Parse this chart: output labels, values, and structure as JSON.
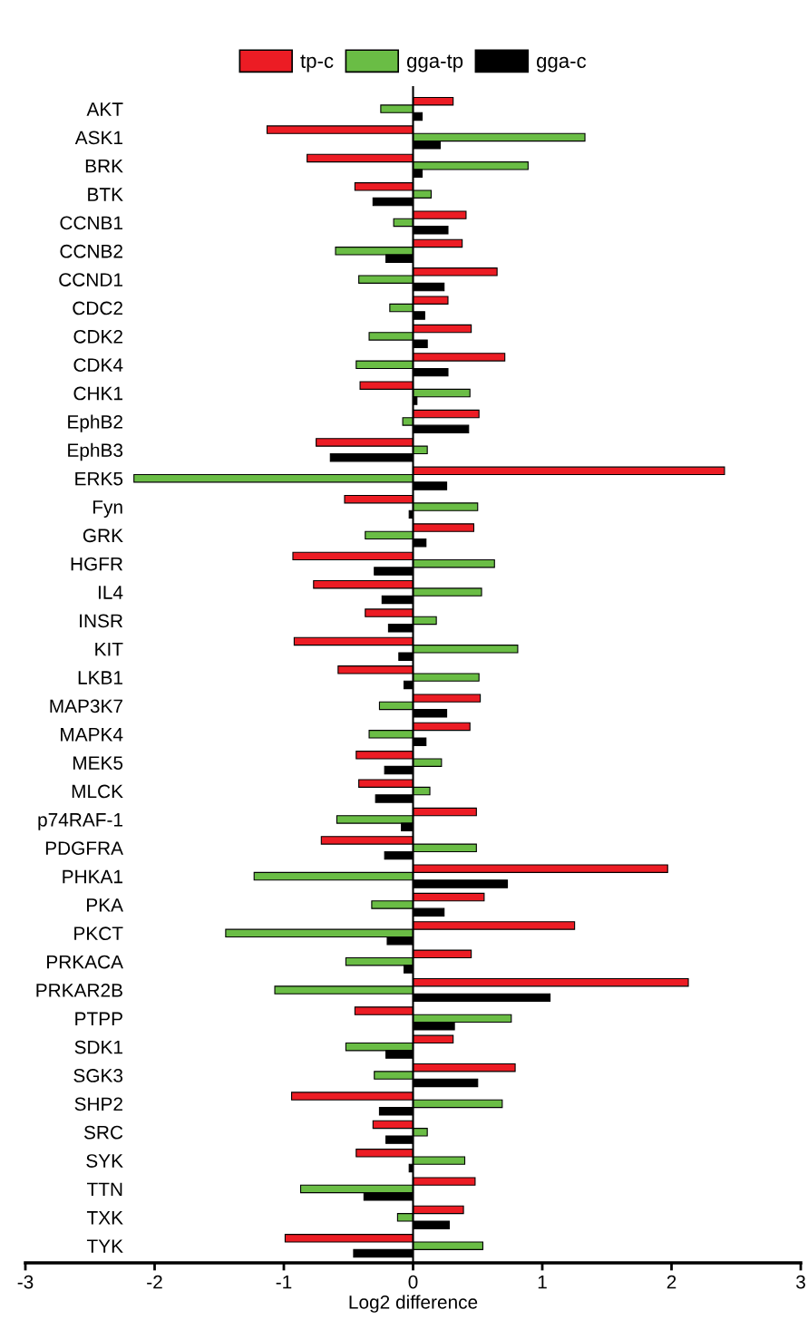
{
  "chart_data": {
    "type": "bar",
    "orientation": "horizontal",
    "xlabel": "Log2 difference",
    "categories": [
      "AKT",
      "ASK1",
      "BRK",
      "BTK",
      "CCNB1",
      "CCNB2",
      "CCND1",
      "CDC2",
      "CDK2",
      "CDK4",
      "CHK1",
      "EphB2",
      "EphB3",
      "ERK5",
      "Fyn",
      "GRK",
      "HGFR",
      "IL4",
      "INSR",
      "KIT",
      "LKB1",
      "MAP3K7",
      "MAPK4",
      "MEK5",
      "MLCK",
      "p74RAF-1",
      "PDGFRA",
      "PHKA1",
      "PKA",
      "PKCT",
      "PRKACA",
      "PRKAR2B",
      "PTPP",
      "SDK1",
      "SGK3",
      "SHP2",
      "SRC",
      "SYK",
      "TTN",
      "TXK",
      "TYK"
    ],
    "series": [
      {
        "name": "tp-c",
        "color": "#ec1c24",
        "values": [
          0.31,
          -1.13,
          -0.82,
          -0.45,
          0.41,
          0.38,
          0.65,
          0.27,
          0.45,
          0.71,
          -0.41,
          0.51,
          -0.75,
          2.41,
          -0.53,
          0.47,
          -0.93,
          -0.77,
          -0.37,
          -0.92,
          -0.58,
          0.52,
          0.44,
          -0.44,
          -0.42,
          0.49,
          -0.71,
          1.97,
          0.55,
          1.25,
          0.45,
          2.13,
          -0.45,
          0.31,
          0.79,
          -0.94,
          -0.31,
          -0.44,
          0.48,
          0.39,
          -0.99
        ]
      },
      {
        "name": "gga-tp",
        "color": "#6abd45",
        "values": [
          -0.25,
          1.33,
          0.89,
          0.14,
          -0.15,
          -0.6,
          -0.42,
          -0.18,
          -0.34,
          -0.44,
          0.44,
          -0.08,
          0.11,
          -2.16,
          0.5,
          -0.37,
          0.63,
          0.53,
          0.18,
          0.81,
          0.51,
          -0.26,
          -0.34,
          0.22,
          0.13,
          -0.59,
          0.49,
          -1.23,
          -0.32,
          -1.45,
          -0.52,
          -1.07,
          0.76,
          -0.52,
          -0.3,
          0.69,
          0.11,
          0.4,
          -0.87,
          -0.12,
          0.54
        ]
      },
      {
        "name": "gga-c",
        "color": "#000000",
        "values": [
          0.07,
          0.21,
          0.07,
          -0.31,
          0.27,
          -0.21,
          0.24,
          0.09,
          0.11,
          0.27,
          0.03,
          0.43,
          -0.64,
          0.26,
          -0.03,
          0.1,
          -0.3,
          -0.24,
          -0.19,
          -0.11,
          -0.07,
          0.26,
          0.1,
          -0.22,
          -0.29,
          -0.09,
          -0.22,
          0.73,
          0.24,
          -0.2,
          -0.07,
          1.06,
          0.32,
          -0.21,
          0.5,
          -0.26,
          -0.21,
          -0.03,
          -0.38,
          0.28,
          -0.46
        ]
      }
    ],
    "xlim": [
      -3,
      3
    ],
    "xticks": [
      -3,
      -2,
      -1,
      0,
      1,
      2,
      3
    ],
    "ref_lines": [
      {
        "axis": "x",
        "value": 0,
        "color": "#000000"
      }
    ],
    "legend": "top",
    "grid": false
  }
}
